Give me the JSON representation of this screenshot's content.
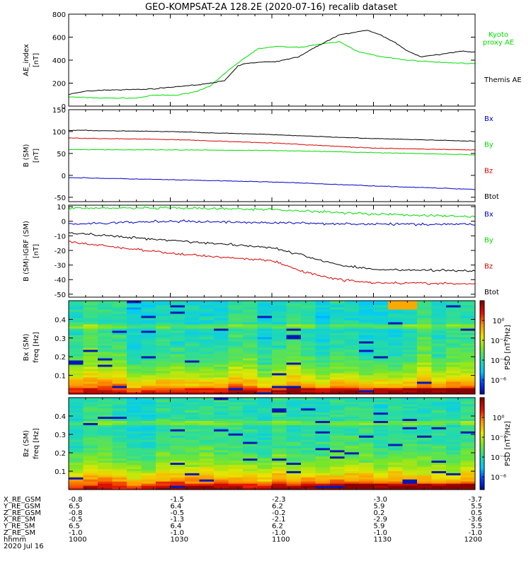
{
  "chart_data": {
    "title": "GEO-KOMPSAT-2A 128.2E (2020-07-16) recalib dataset",
    "panels": [
      {
        "type": "line",
        "ylabel": [
          "AE_index",
          "[nT]"
        ],
        "ylim": [
          0,
          800
        ],
        "yticks": [
          "0",
          "200",
          "400",
          "600",
          "800"
        ],
        "series": [
          {
            "name": "Kyoto proxy AE",
            "color": "#00dd00",
            "x": [
              0,
              10,
              20,
              25,
              32,
              38,
              42,
              48,
              52,
              56,
              62,
              68,
              72,
              80,
              85,
              92,
              100,
              110,
              120
            ],
            "y": [
              80,
              70,
              70,
              95,
              95,
              130,
              180,
              330,
              420,
              500,
              520,
              510,
              530,
              560,
              480,
              430,
              400,
              380,
              370
            ]
          },
          {
            "name": "Themis AE",
            "color": "#000000",
            "x": [
              0,
              5,
              10,
              20,
              25,
              32,
              38,
              42,
              46,
              50,
              52,
              56,
              62,
              68,
              72,
              76,
              80,
              84,
              88,
              92,
              96,
              100,
              104,
              110,
              116,
              120
            ],
            "y": [
              100,
              130,
              140,
              145,
              150,
              170,
              185,
              200,
              220,
              350,
              370,
              380,
              390,
              430,
              500,
              560,
              620,
              640,
              660,
              620,
              560,
              480,
              430,
              450,
              480,
              470
            ]
          }
        ]
      },
      {
        "type": "line",
        "ylabel": [
          "B (SM)",
          "[nT]"
        ],
        "ylim": [
          -60,
          150
        ],
        "yticks": [
          "-50",
          "0",
          "50",
          "100",
          "150"
        ],
        "series": [
          {
            "name": "Bx",
            "color": "#0000c8",
            "x": [
              0,
              30,
              60,
              90,
              120
            ],
            "y": [
              -5,
              -10,
              -15,
              -24,
              -32
            ]
          },
          {
            "name": "By",
            "color": "#00dd00",
            "x": [
              0,
              30,
              60,
              90,
              120
            ],
            "y": [
              59,
              58,
              57,
              52,
              47
            ]
          },
          {
            "name": "Bz",
            "color": "#dd0000",
            "x": [
              0,
              30,
              60,
              90,
              120
            ],
            "y": [
              85,
              82,
              74,
              62,
              58
            ]
          },
          {
            "name": "Btot",
            "color": "#000000",
            "x": [
              0,
              30,
              60,
              90,
              120
            ],
            "y": [
              103,
              100,
              93,
              84,
              78
            ]
          }
        ]
      },
      {
        "type": "line",
        "ylabel": [
          "B (SM)-IGRF (SM)",
          "[nT]"
        ],
        "ylim": [
          -52,
          11
        ],
        "yticks": [
          "-50",
          "-40",
          "-30",
          "-20",
          "-10",
          "0",
          "10"
        ],
        "series": [
          {
            "name": "Bx",
            "color": "#0000c8",
            "x": [
              0,
              30,
              60,
              90,
              120
            ],
            "y": [
              -2,
              0,
              -1,
              -2,
              -2
            ]
          },
          {
            "name": "By",
            "color": "#00dd00",
            "x": [
              0,
              30,
              60,
              90,
              120
            ],
            "y": [
              9,
              9,
              8,
              5,
              3
            ]
          },
          {
            "name": "Bz",
            "color": "#dd0000",
            "x": [
              0,
              30,
              60,
              70,
              80,
              90,
              120
            ],
            "y": [
              -14,
              -22,
              -27,
              -35,
              -40,
              -42,
              -43
            ]
          },
          {
            "name": "Btot",
            "color": "#000000",
            "x": [
              0,
              30,
              60,
              70,
              80,
              90,
              120
            ],
            "y": [
              -8,
              -13,
              -18,
              -24,
              -30,
              -33,
              -34
            ]
          }
        ]
      },
      {
        "type": "heatmap",
        "ylabel": [
          "Bx (SM)",
          "freq [Hz]"
        ],
        "ylim": [
          0,
          0.5
        ],
        "yticks": [
          "0.1",
          "0.2",
          "0.3",
          "0.4"
        ],
        "colorbar_label": "PSD [nT²/Hz]",
        "colorbar_ticks": [
          "10⁰",
          "10⁻²",
          "10⁻⁴",
          "10⁻⁶"
        ]
      },
      {
        "type": "heatmap",
        "ylabel": [
          "Bz (SM)",
          "freq [Hz]"
        ],
        "ylim": [
          0,
          0.5
        ],
        "yticks": [
          "0.1",
          "0.2",
          "0.3",
          "0.4"
        ],
        "colorbar_label": "PSD [nT²/Hz]",
        "colorbar_ticks": [
          "10⁰",
          "10⁻²",
          "10⁻⁴",
          "10⁻⁶"
        ]
      }
    ],
    "xaxis_table": {
      "labels": [
        "X_RE_GSM",
        "Y_RE_GSM",
        "Z_RE_GSM",
        "X_RE_SM",
        "Y_RE_SM",
        "Z_RE_SM",
        "hhmm"
      ],
      "date": "2020 Jul 16",
      "columns": [
        [
          "-0.8",
          "6.5",
          "-0.8",
          "-0.5",
          "6.5",
          "-1.0",
          "1000"
        ],
        [
          "-1.5",
          "6.4",
          "-0.5",
          "-1.3",
          "6.4",
          "-1.0",
          "1030"
        ],
        [
          "-2.3",
          "6.2",
          "-0.2",
          "-2.1",
          "6.2",
          "-1.0",
          "1100"
        ],
        [
          "-3.0",
          "5.9",
          "0.2",
          "-2.9",
          "5.9",
          "-1.0",
          "1130"
        ],
        [
          "-3.7",
          "5.5",
          "0.5",
          "-3.6",
          "5.5",
          "-1.0",
          "1200"
        ]
      ]
    }
  }
}
